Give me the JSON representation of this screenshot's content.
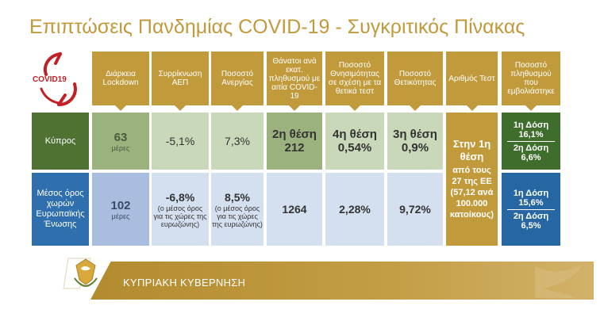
{
  "title": "Επιπτώσεις Πανδημίας COVID-19 - Συγκριτικός Πίνακας",
  "logo": {
    "text": "COVID19"
  },
  "headers": [
    "Διάρκεια Lockdown",
    "Συρρίκνωση ΑΕΠ",
    "Ποσοστό Ανεργίας",
    "Θάνατοι ανά εκατ. πληθυσμού με αιτία COVID-19",
    "Ποσοστό Θνησιμότητας σε σχέση με τα θετικά τεστ",
    "Ποσοστό Θετικότητας",
    "Αριθμός Τεστ",
    "Ποσοστό πληθυσμού που εμβολιάστηκε"
  ],
  "rows": {
    "cyprus": {
      "label": "Κύπρος",
      "lockdown_value": "63",
      "lockdown_unit": "μέρες",
      "gdp": "-5,1%",
      "unemployment": "7,3%",
      "deaths_rank": "2η θέση",
      "deaths_value": "212",
      "mortality_rank": "4η θέση",
      "mortality_value": "0,54%",
      "positivity_rank": "3η θέση",
      "positivity_value": "0,9%",
      "dose1": "1η Δόση",
      "dose1_value": "16,1%",
      "dose2": "2η Δόση",
      "dose2_value": "6,6%"
    },
    "eu": {
      "label": "Μέσος όρος χωρών Ευρωπαϊκής Ένωσης",
      "lockdown_value": "102",
      "lockdown_unit": "μέρες",
      "gdp": "-6,8%",
      "gdp_note": "(ο μέσος όρος για τις χώρες της ευρωζώνης)",
      "unemployment": "8,5%",
      "unemployment_note": "(ο μέσος όρος για τις χώρες της ευρωζώνης)",
      "deaths_value": "1264",
      "mortality_value": "2,28%",
      "positivity_value": "9,72%",
      "dose1": "1η Δόση",
      "dose1_value": "15,6%",
      "dose2": "2η Δόση",
      "dose2_value": "6,5%"
    }
  },
  "tests": {
    "rank": "Στην 1η θέση",
    "detail": "από τους 27 της ΕΕ (57,12 ανά 100.000 κατοίκους)"
  },
  "footer": {
    "text": "ΚΥΠΡΙΑΚΗ ΚΥΒΕΡΝΗΣΗ"
  },
  "colors": {
    "gold": "#c19a3b",
    "green_dark": "#4f7132",
    "green_light": "#9bb27f",
    "green_pale": "#c8d8b8",
    "blue_dark": "#2f6fae",
    "blue_light": "#a9bedf",
    "blue_pale": "#d4e0f0",
    "vaccine_green": "#3f6e2c",
    "vaccine_blue": "#2667a3"
  }
}
